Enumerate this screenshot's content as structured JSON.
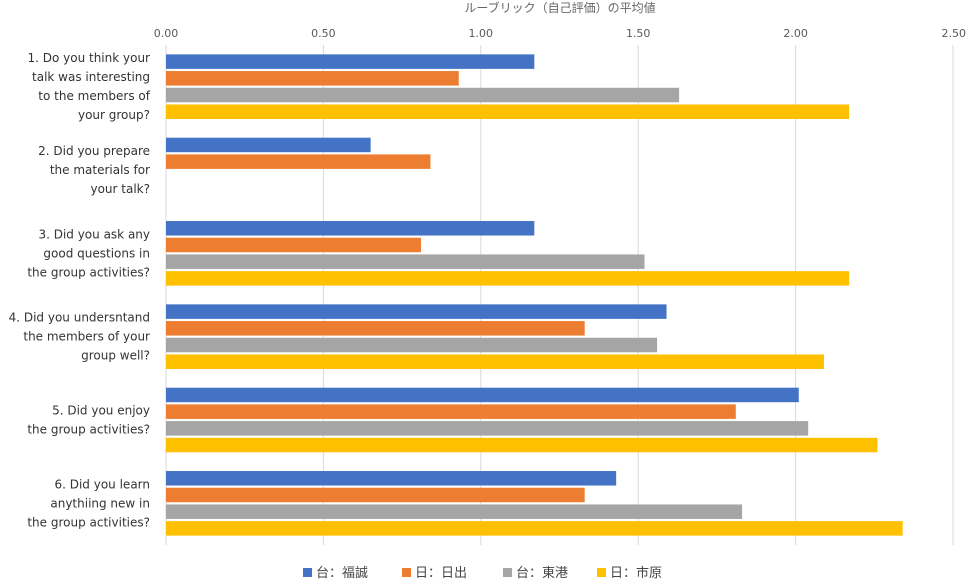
{
  "chart_data": {
    "type": "bar",
    "orientation": "horizontal",
    "title": "ルーブリック（自己評価）の平均値",
    "xlim": [
      0,
      2.5
    ],
    "xticks": [
      "0.00",
      "0.50",
      "1.00",
      "1.50",
      "2.00",
      "2.50"
    ],
    "xtick_values": [
      0,
      0.5,
      1.0,
      1.5,
      2.0,
      2.5
    ],
    "xaxis_position": "top",
    "grid": true,
    "legend_position": "bottom",
    "categories": [
      [
        "1. Do you think your",
        "talk was interesting",
        "to the members of",
        "your group?"
      ],
      [
        "2. Did you prepare",
        "the materials for",
        "your talk?"
      ],
      [
        "3. Did you ask any",
        "good questions in",
        "the group activities?"
      ],
      [
        "4. Did you undersntand",
        "the members of your",
        "group well?"
      ],
      [
        "5. Did you enjoy",
        "the group activities?"
      ],
      [
        "6. Did you learn",
        "anythiing new in",
        "the group activities?"
      ]
    ],
    "series": [
      {
        "name": "台：福誠",
        "color": "#4472C4",
        "values": [
          1.17,
          0.65,
          1.17,
          1.59,
          2.01,
          1.43
        ]
      },
      {
        "name": "日：日出",
        "color": "#ED7D31",
        "values": [
          0.93,
          0.84,
          0.81,
          1.33,
          1.81,
          1.33
        ]
      },
      {
        "name": "台：東港",
        "color": "#A5A5A5",
        "values": [
          1.63,
          0.0,
          1.52,
          1.56,
          2.04,
          1.83
        ]
      },
      {
        "name": "日：市原",
        "color": "#FFC000",
        "values": [
          2.17,
          0.0,
          2.17,
          2.09,
          2.26,
          2.34
        ]
      }
    ]
  }
}
